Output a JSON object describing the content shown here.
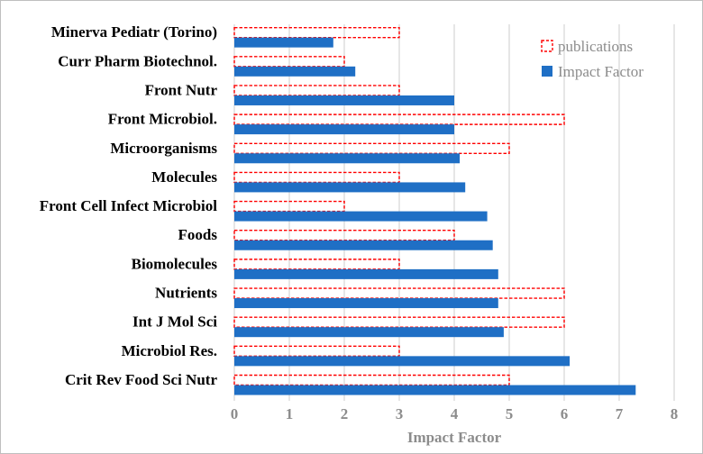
{
  "chart_data": {
    "type": "bar",
    "orientation": "horizontal",
    "title": "",
    "xlabel": "Impact Factor",
    "ylabel": "",
    "xlim": [
      0,
      8
    ],
    "x_ticks": [
      "0",
      "1",
      "2",
      "3",
      "4",
      "5",
      "6",
      "7",
      "8"
    ],
    "grid": true,
    "legend_position": "top-right",
    "categories": [
      "Crit Rev Food Sci Nutr",
      "Microbiol Res.",
      "Int J Mol Sci",
      "Nutrients",
      "Biomolecules",
      "Foods",
      "Front Cell Infect Microbiol",
      "Molecules",
      "Microorganisms",
      "Front Microbiol.",
      "Front Nutr",
      "Curr Pharm Biotechnol.",
      "Minerva Pediatr (Torino)"
    ],
    "series": [
      {
        "name": "publications",
        "style": "dashed-outline",
        "color": "#ff0000",
        "values": [
          5,
          3,
          6,
          6,
          3,
          4,
          2,
          3,
          5,
          6,
          3,
          2,
          3
        ]
      },
      {
        "name": "Impact Factor",
        "style": "filled",
        "color": "#1f6fc5",
        "values": [
          7.3,
          6.1,
          4.9,
          4.8,
          4.8,
          4.7,
          4.6,
          4.2,
          4.1,
          4.0,
          4.0,
          2.2,
          1.8
        ]
      }
    ]
  }
}
